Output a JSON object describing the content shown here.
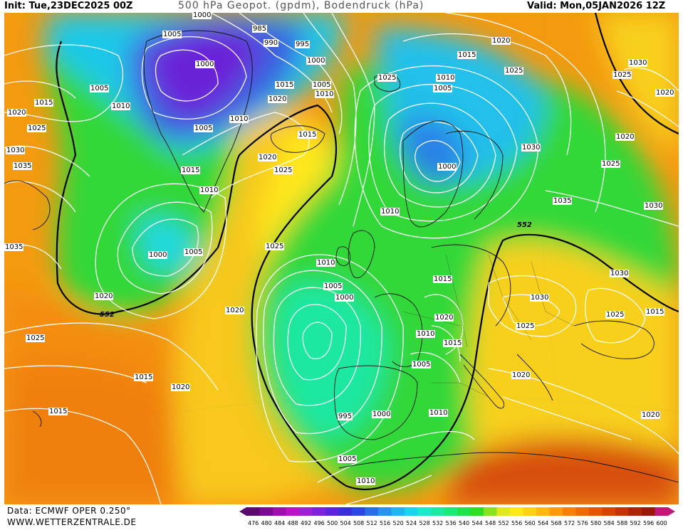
{
  "header": {
    "init": "Init: Tue,23DEC2025 00Z",
    "title": "500 hPa Geopot. (gpdm), Bodendruck (hPa)",
    "valid": "Valid: Mon,05JAN2026 12Z"
  },
  "footer": {
    "data_source": "Data: ECMWF OPER 0.250°",
    "website": "WWW.WETTERZENTRALE.DE"
  },
  "legend": {
    "values": [
      "476",
      "480",
      "484",
      "488",
      "492",
      "496",
      "500",
      "504",
      "508",
      "512",
      "516",
      "520",
      "524",
      "528",
      "532",
      "536",
      "540",
      "544",
      "548",
      "552",
      "556",
      "560",
      "564",
      "568",
      "572",
      "576",
      "580",
      "584",
      "588",
      "592",
      "596",
      "600"
    ],
    "colors": [
      "#5a0a6e",
      "#7a0a8e",
      "#9c10a8",
      "#b814c2",
      "#9a22d0",
      "#7d22d8",
      "#5b24d8",
      "#3a2ed6",
      "#2a48e0",
      "#2a6ee6",
      "#2a92ea",
      "#22b4ec",
      "#1ed2ea",
      "#1ee8cc",
      "#1ee8a2",
      "#1ee878",
      "#22e04e",
      "#30dc26",
      "#8ae022",
      "#e0e822",
      "#ffe81e",
      "#ffd218",
      "#ffb814",
      "#ff9a10",
      "#f6800c",
      "#ec6a08",
      "#e25606",
      "#d44404",
      "#c23204",
      "#aa2406",
      "#961808",
      "#c01876"
    ]
  },
  "map": {
    "contour_552_label": "552",
    "pressure_labels": [
      "1000",
      "1005",
      "1010",
      "1015",
      "1020",
      "1025",
      "1030",
      "1035",
      "985",
      "990",
      "995"
    ]
  }
}
